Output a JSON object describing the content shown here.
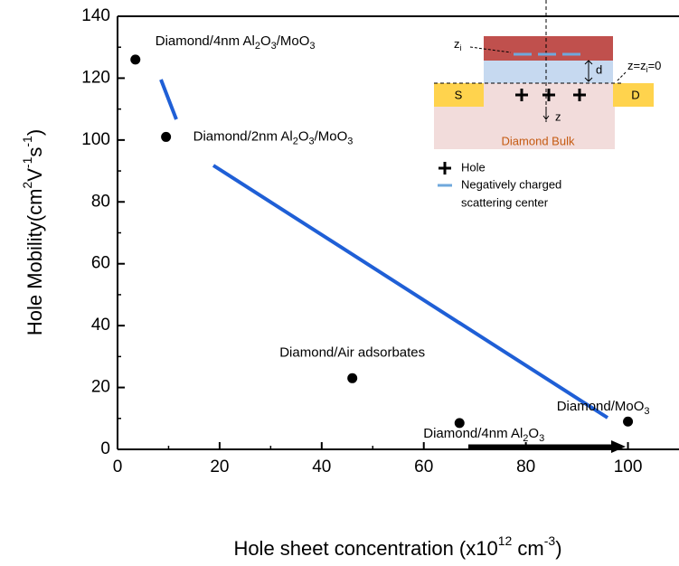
{
  "chart_data": {
    "type": "scatter",
    "x": [
      3.5,
      9.5,
      46,
      67,
      100
    ],
    "values": [
      126,
      101,
      23,
      8.5,
      9
    ],
    "point_labels": [
      "Diamond/4nm Al2O3/MoO3",
      "Diamond/2nm Al2O3/MoO3",
      "Diamond/Air adsorbates",
      "Diamond/4nm Al2O3",
      "Diamond/MoO3"
    ],
    "color": "#000000",
    "xlim": [
      0,
      110
    ],
    "xticks": [
      0,
      20,
      40,
      60,
      80,
      100
    ],
    "ylim": [
      0,
      140
    ],
    "yticks": [
      0,
      20,
      40,
      60,
      80,
      100,
      120,
      140
    ],
    "x_label": [
      "Hole sheet concentration (x10",
      "12",
      " cm",
      "-3",
      ")"
    ],
    "y_label": [
      "Hole Mobility(cm",
      "2",
      "V",
      "-1",
      "s",
      "-1",
      ")"
    ],
    "inset": {
      "zi": [
        "z",
        "i"
      ],
      "z0": [
        "z=z",
        "i",
        "=0"
      ],
      "d": "d",
      "s": "S",
      "drain": "D",
      "z": "z",
      "bulk": "Diamond Bulk",
      "hole": "Hole",
      "charged": [
        "Negatively charged",
        "scattering center"
      ]
    }
  }
}
